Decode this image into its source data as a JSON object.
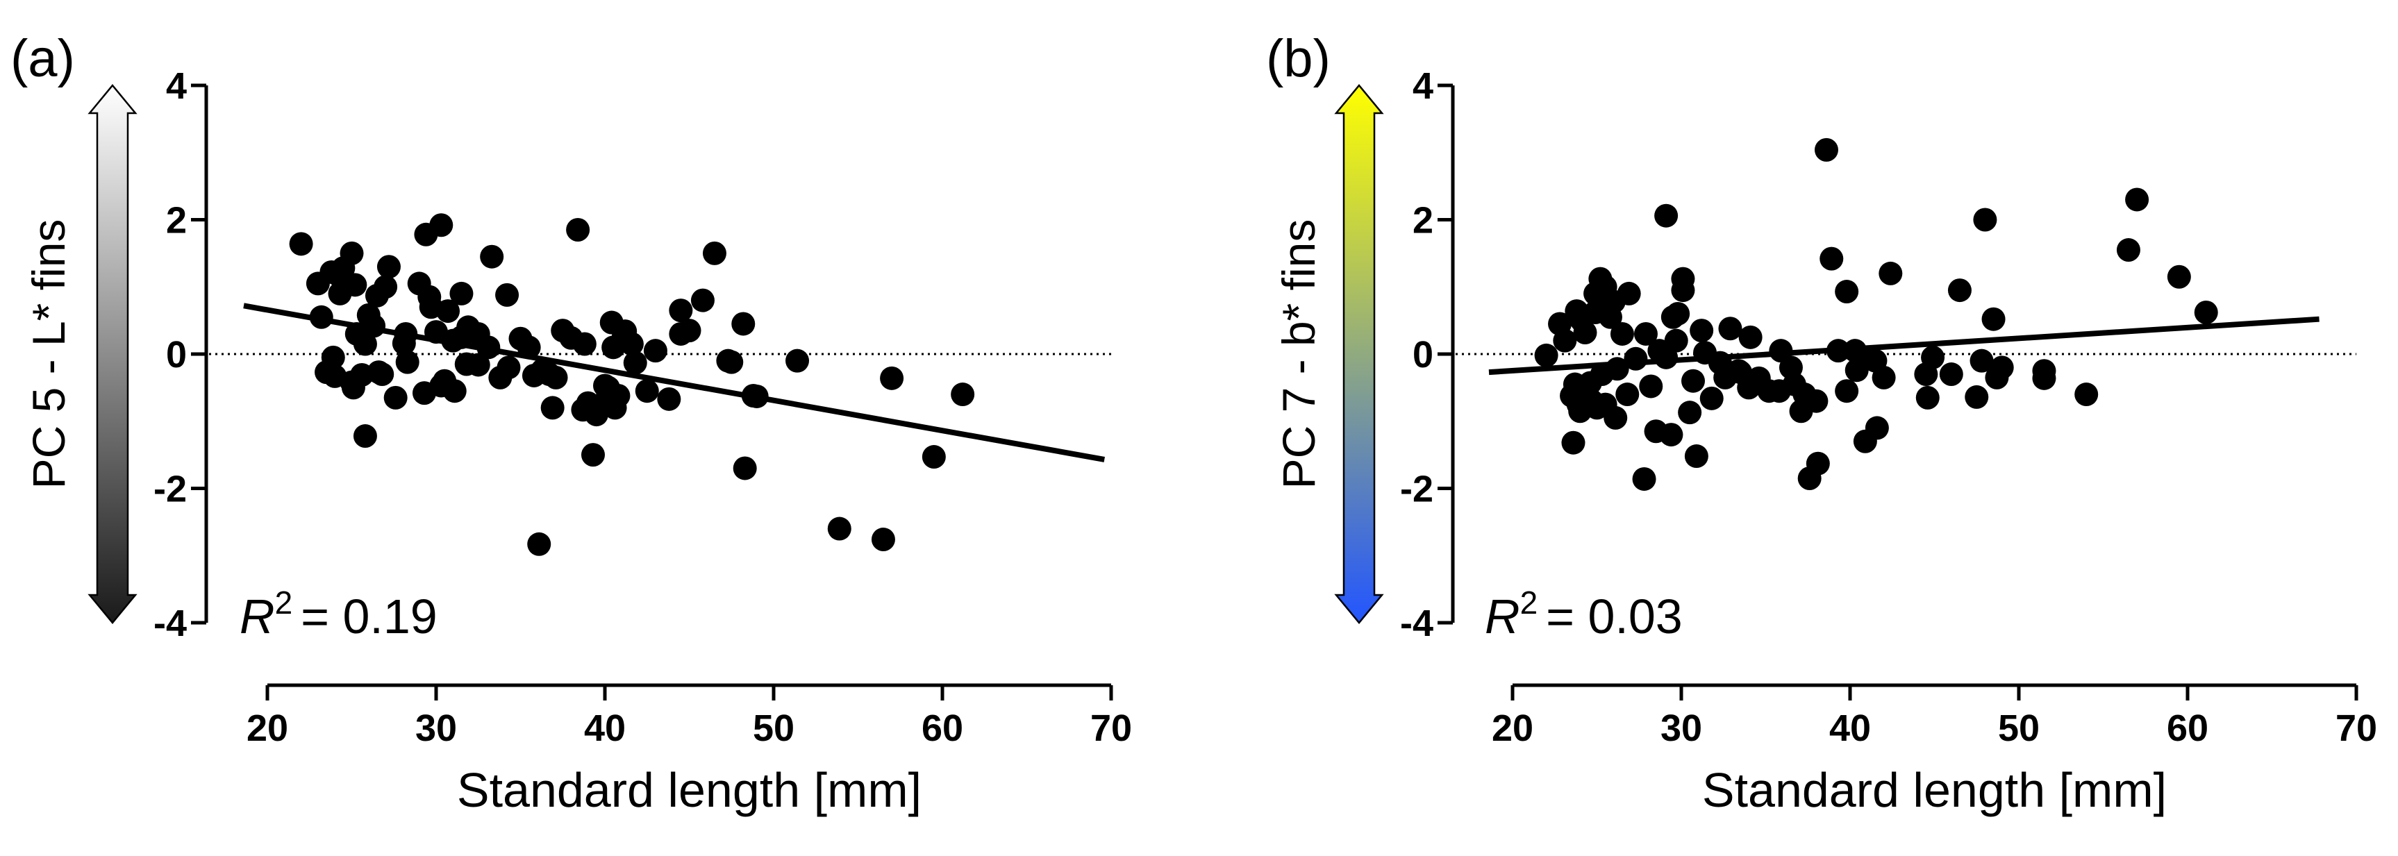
{
  "chart_data": [
    {
      "type": "scatter",
      "panel_label": "(a)",
      "ylabel": "PC 5 - L* fins",
      "xlabel": "Standard length [mm]",
      "xlim": [
        20,
        70
      ],
      "ylim": [
        -4,
        4
      ],
      "x_ticks": [
        "20",
        "30",
        "40",
        "50",
        "60",
        "70"
      ],
      "y_ticks": [
        "4",
        "2",
        "0",
        "-2",
        "-4"
      ],
      "r2_symbol": "R",
      "r2_superscript": "2",
      "r2_value": "= 0.19",
      "gradient_colors": [
        "#ffffff",
        "#1a1a1a"
      ],
      "zero_line": "dotted",
      "regression": {
        "x": [
          18.6,
          69.6
        ],
        "y": [
          0.72,
          -1.57
        ]
      },
      "x": [
        22.0,
        23.0,
        23.2,
        23.5,
        23.8,
        24.0,
        24.5,
        25.0,
        25.3,
        25.6,
        26.0,
        26.3,
        26.6,
        27.2,
        27.6,
        28.1,
        28.3,
        29.0,
        29.3,
        29.6,
        30.0,
        30.3,
        30.7,
        31.1,
        31.5,
        31.9,
        32.5,
        33.3,
        34.2,
        35.0,
        35.8,
        36.3,
        36.9,
        37.5,
        38.0,
        38.7,
        39.3,
        39.8,
        40.4,
        40.8,
        41.2,
        41.8,
        42.5,
        43.8,
        44.5,
        45.0,
        45.8,
        46.5,
        47.5,
        48.3,
        49.0,
        51.4,
        53.9,
        56.5,
        57.0,
        59.5,
        61.2,
        36.1,
        39.0,
        40.0,
        40.6,
        25.2,
        25.0,
        24.2,
        27.0,
        25.8,
        26.5,
        29.4,
        30.3,
        31.0,
        32.5,
        33.8,
        35.5,
        37.1,
        41.6,
        44.5,
        48.2,
        24.3,
        25.8,
        28.2,
        29.7,
        31.5,
        33.1,
        38.4,
        40.2,
        43.0,
        48.8,
        23.9,
        25.1,
        26.8,
        30.5,
        31.8,
        34.3,
        36.7,
        38.8,
        39.5,
        40.5,
        47.3,
        41.1
      ],
      "y": [
        1.64,
        1.05,
        0.55,
        -0.27,
        1.22,
        -0.33,
        1.28,
        -0.42,
        0.3,
        -0.31,
        0.58,
        0.42,
        -0.27,
        1.3,
        -0.65,
        0.16,
        -0.12,
        1.05,
        -0.58,
        0.85,
        0.33,
        -0.47,
        0.64,
        -0.55,
        0.9,
        0.4,
        -0.16,
        1.45,
        0.88,
        0.23,
        -0.32,
        -0.24,
        -0.8,
        0.35,
        0.24,
        -0.83,
        -1.5,
        -0.75,
        0.47,
        -0.62,
        0.34,
        -0.13,
        -0.55,
        -0.67,
        0.65,
        0.35,
        0.8,
        1.5,
        -0.12,
        -1.7,
        -0.63,
        -0.1,
        -2.6,
        -2.76,
        -0.36,
        -1.53,
        -0.6,
        -2.83,
        -0.73,
        -0.47,
        -0.8,
        1.03,
        1.5,
        1.18,
        1.0,
        -1.22,
        0.87,
        1.78,
        1.92,
        0.2,
        0.3,
        -0.35,
        0.1,
        -0.35,
        0.15,
        0.3,
        0.45,
        0.9,
        0.15,
        0.3,
        0.7,
        0.25,
        0.1,
        1.85,
        -0.5,
        0.05,
        -0.62,
        -0.05,
        -0.5,
        -0.3,
        -0.4,
        -0.15,
        -0.2,
        -0.3,
        0.15,
        -0.9,
        0.1,
        -0.1,
        0.25
      ]
    },
    {
      "type": "scatter",
      "panel_label": "(b)",
      "ylabel": "PC 7 - b* fins",
      "xlabel": "Standard length [mm]",
      "xlim": [
        20,
        70
      ],
      "ylim": [
        -4,
        4
      ],
      "x_ticks": [
        "20",
        "30",
        "40",
        "50",
        "60",
        "70"
      ],
      "y_ticks": [
        "4",
        "2",
        "0",
        "-2",
        "-4"
      ],
      "r2_symbol": "R",
      "r2_superscript": "2",
      "r2_value": "= 0.03",
      "gradient_colors": [
        "#ffff00",
        "#2255ff"
      ],
      "zero_line": "dotted",
      "regression": {
        "x": [
          18.6,
          67.8
        ],
        "y": [
          -0.27,
          0.52
        ]
      },
      "x": [
        22.0,
        22.8,
        23.1,
        23.5,
        23.8,
        24.0,
        24.3,
        24.6,
        24.9,
        25.2,
        25.5,
        25.8,
        26.2,
        26.5,
        26.9,
        27.3,
        27.8,
        28.2,
        28.7,
        29.1,
        29.4,
        29.8,
        30.1,
        30.5,
        30.9,
        31.4,
        31.8,
        32.3,
        32.9,
        33.5,
        34.0,
        34.6,
        35.2,
        35.9,
        36.5,
        37.1,
        37.6,
        38.1,
        38.6,
        38.9,
        39.3,
        39.8,
        40.4,
        41.0,
        41.6,
        42.4,
        44.6,
        46.0,
        46.5,
        47.5,
        48.0,
        48.5,
        49.0,
        51.5,
        54.0,
        56.5,
        57.0,
        59.5,
        61.1,
        23.6,
        24.9,
        25.5,
        26.0,
        29.1,
        27.9,
        30.1,
        23.7,
        23.9,
        24.4,
        25.3,
        26.8,
        28.5,
        29.7,
        31.2,
        32.6,
        34.1,
        36.7,
        37.3,
        39.8,
        40.9,
        42.0,
        44.5,
        47.8,
        51.5,
        24.1,
        25.0,
        29.5,
        30.7,
        33.4,
        35.8,
        38.0,
        40.3,
        41.5,
        44.9,
        48.7,
        26.1,
        24.7
      ],
      "y": [
        -0.02,
        0.45,
        0.2,
        -0.62,
        0.64,
        -0.85,
        0.32,
        -0.43,
        0.9,
        1.12,
        -0.75,
        0.55,
        -0.22,
        0.3,
        0.9,
        -0.07,
        -1.86,
        -0.48,
        0.05,
        2.06,
        -1.2,
        0.6,
        1.12,
        -0.87,
        -1.52,
        0.02,
        -0.66,
        -0.13,
        0.38,
        -0.27,
        -0.5,
        -0.36,
        -0.55,
        0.05,
        -0.2,
        -0.85,
        -1.85,
        -1.63,
        3.04,
        1.42,
        0.05,
        0.93,
        -0.24,
        -0.07,
        -1.1,
        1.2,
        -0.65,
        -0.3,
        0.95,
        -0.64,
        2.0,
        0.52,
        -0.2,
        -0.36,
        -0.6,
        1.55,
        2.3,
        1.15,
        0.62,
        -1.32,
        0.62,
        1.0,
        0.78,
        -0.05,
        0.3,
        0.95,
        -0.45,
        -0.75,
        -0.55,
        -0.3,
        -0.6,
        -1.15,
        0.2,
        0.35,
        -0.35,
        0.25,
        -0.45,
        -0.6,
        -0.55,
        -1.3,
        -0.35,
        -0.3,
        -0.1,
        -0.25,
        0.5,
        -0.8,
        0.55,
        -0.4,
        -0.25,
        -0.55,
        -0.7,
        0.05,
        -0.1,
        -0.05,
        -0.35,
        -0.95,
        -0.7
      ]
    }
  ]
}
